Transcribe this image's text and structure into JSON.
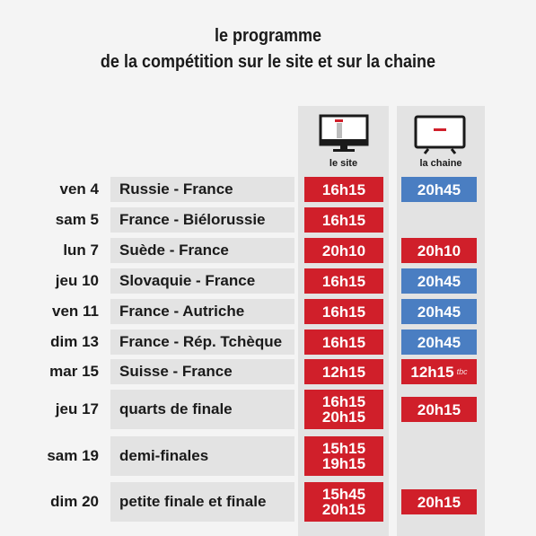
{
  "title": {
    "line1": "le programme",
    "line2": "de la compétition sur le site et sur la chaine"
  },
  "columns": {
    "site_label": "le site",
    "tv_label": "la chaine",
    "site_icon": "monitor-icon",
    "tv_icon": "tv-icon"
  },
  "colors": {
    "red": "#d01f2a",
    "blue": "#4a7ec2",
    "grey": "#e3e3e3"
  },
  "rows": [
    {
      "day": "ven 4",
      "match": "Russie - France",
      "site": [
        "16h15"
      ],
      "tv": "20h45",
      "tv_color": "blue",
      "tv_note": ""
    },
    {
      "day": "sam 5",
      "match": "France - Biélorussie",
      "site": [
        "16h15"
      ],
      "tv": "",
      "tv_color": "",
      "tv_note": ""
    },
    {
      "day": "lun 7",
      "match": "Suède - France",
      "site": [
        "20h10"
      ],
      "tv": "20h10",
      "tv_color": "red",
      "tv_note": ""
    },
    {
      "day": "jeu 10",
      "match": "Slovaquie - France",
      "site": [
        "16h15"
      ],
      "tv": "20h45",
      "tv_color": "blue",
      "tv_note": ""
    },
    {
      "day": "ven 11",
      "match": "France - Autriche",
      "site": [
        "16h15"
      ],
      "tv": "20h45",
      "tv_color": "blue",
      "tv_note": ""
    },
    {
      "day": "dim 13",
      "match": "France - Rép. Tchèque",
      "site": [
        "16h15"
      ],
      "tv": "20h45",
      "tv_color": "blue",
      "tv_note": ""
    },
    {
      "day": "mar 15",
      "match": "Suisse - France",
      "site": [
        "12h15"
      ],
      "tv": "12h15",
      "tv_color": "red",
      "tv_note": "tbc"
    },
    {
      "day": "jeu 17",
      "match": "quarts de finale",
      "site": [
        "16h15",
        "20h15"
      ],
      "tv": "20h15",
      "tv_color": "red",
      "tv_note": ""
    },
    {
      "day": "sam 19",
      "match": "demi-finales",
      "site": [
        "15h15",
        "19h15"
      ],
      "tv": "",
      "tv_color": "",
      "tv_note": ""
    },
    {
      "day": "dim 20",
      "match": "petite finale et finale",
      "site": [
        "15h45",
        "20h15"
      ],
      "tv": "20h15",
      "tv_color": "red",
      "tv_note": ""
    }
  ]
}
